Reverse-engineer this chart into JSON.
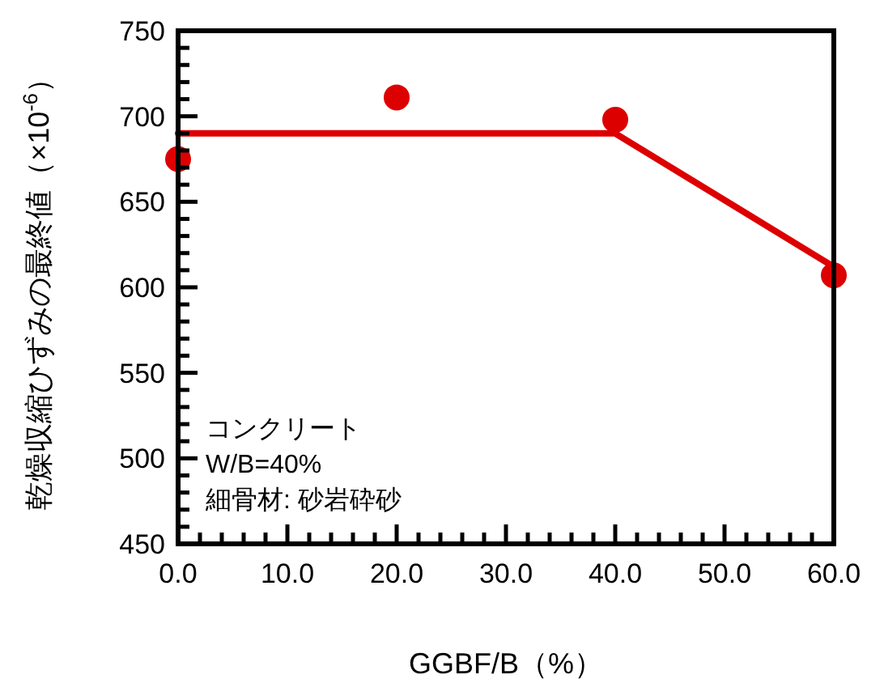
{
  "chart_data": {
    "type": "scatter",
    "xlabel": "GGBF/B（%）",
    "ylabel": "乾燥収縮ひずみの最終値（×10$^{-6}$）",
    "xlim": [
      0,
      60
    ],
    "ylim": [
      450,
      750
    ],
    "xticks": [
      {
        "value": 0,
        "label": "0.0"
      },
      {
        "value": 2,
        "label": null
      },
      {
        "value": 4,
        "label": null
      },
      {
        "value": 6,
        "label": null
      },
      {
        "value": 8,
        "label": null
      },
      {
        "value": 10,
        "label": "10.0"
      },
      {
        "value": 12,
        "label": null
      },
      {
        "value": 14,
        "label": null
      },
      {
        "value": 16,
        "label": null
      },
      {
        "value": 18,
        "label": null
      },
      {
        "value": 20,
        "label": "20.0"
      },
      {
        "value": 22,
        "label": null
      },
      {
        "value": 24,
        "label": null
      },
      {
        "value": 26,
        "label": null
      },
      {
        "value": 28,
        "label": null
      },
      {
        "value": 30,
        "label": "30.0"
      },
      {
        "value": 32,
        "label": null
      },
      {
        "value": 34,
        "label": null
      },
      {
        "value": 36,
        "label": null
      },
      {
        "value": 38,
        "label": null
      },
      {
        "value": 40,
        "label": "40.0"
      },
      {
        "value": 42,
        "label": null
      },
      {
        "value": 44,
        "label": null
      },
      {
        "value": 46,
        "label": null
      },
      {
        "value": 48,
        "label": null
      },
      {
        "value": 50,
        "label": "50.0"
      },
      {
        "value": 52,
        "label": null
      },
      {
        "value": 54,
        "label": null
      },
      {
        "value": 56,
        "label": null
      },
      {
        "value": 58,
        "label": null
      },
      {
        "value": 60,
        "label": "60.0"
      }
    ],
    "yticks": [
      450,
      {
        "value": 460,
        "label": null
      },
      {
        "value": 470,
        "label": null
      },
      {
        "value": 480,
        "label": null
      },
      {
        "value": 490,
        "label": null
      },
      500,
      {
        "value": 510,
        "label": null
      },
      {
        "value": 520,
        "label": null
      },
      {
        "value": 530,
        "label": null
      },
      {
        "value": 540,
        "label": null
      },
      550,
      {
        "value": 560,
        "label": null
      },
      {
        "value": 570,
        "label": null
      },
      {
        "value": 580,
        "label": null
      },
      {
        "value": 590,
        "label": null
      },
      600,
      {
        "value": 610,
        "label": null
      },
      {
        "value": 620,
        "label": null
      },
      {
        "value": 630,
        "label": null
      },
      {
        "value": 640,
        "label": null
      },
      650,
      {
        "value": 660,
        "label": null
      },
      {
        "value": 670,
        "label": null
      },
      {
        "value": 680,
        "label": null
      },
      {
        "value": 690,
        "label": null
      },
      700,
      {
        "value": 710,
        "label": null
      },
      {
        "value": 720,
        "label": null
      },
      {
        "value": 730,
        "label": null
      },
      {
        "value": 740,
        "label": null
      },
      750
    ],
    "series": [
      {
        "color": "#dd0000",
        "marker": "circle",
        "x": [
          0,
          20,
          40,
          60
        ],
        "values": [
          675,
          711,
          698,
          607
        ]
      },
      {
        "type": "line",
        "marker": "none",
        "color": "#dd0000",
        "x": [
          0,
          40,
          60
        ],
        "values": [
          690,
          690,
          612
        ]
      }
    ],
    "annotations": [
      "コンクリート",
      "W/B=40%",
      "細骨材: 砂岩砕砂"
    ]
  }
}
